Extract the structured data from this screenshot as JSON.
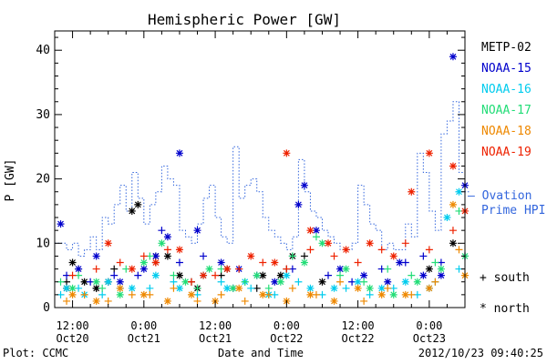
{
  "chart_data": {
    "type": "scatter",
    "title": "Hemispheric Power [GW]",
    "ylabel": "P [GW]",
    "xlabel": "Date and Time",
    "ylim": [
      0,
      43
    ],
    "xlim_hours": [
      -15,
      54
    ],
    "yticks": [
      "0",
      "10",
      "20",
      "30",
      "40"
    ],
    "xticks": [
      {
        "hour": -12,
        "time": "12:00",
        "date": "Oct20"
      },
      {
        "hour": 0,
        "time": "0:00",
        "date": "Oct21"
      },
      {
        "hour": 12,
        "time": "12:00",
        "date": "Oct21"
      },
      {
        "hour": 24,
        "time": "0:00",
        "date": "Oct22"
      },
      {
        "hour": 36,
        "time": "12:00",
        "date": "Oct22"
      },
      {
        "hour": 48,
        "time": "0:00",
        "date": "Oct23"
      }
    ],
    "marker_legend": {
      "south": "+ south",
      "north": "* north"
    },
    "series": [
      {
        "name": "METP-02",
        "color": "#000000",
        "south": [
          [
            -13,
            4
          ],
          [
            -11,
            6
          ],
          [
            -8,
            3
          ],
          [
            -5,
            6
          ],
          [
            2,
            7
          ],
          [
            8,
            4
          ],
          [
            13,
            5
          ],
          [
            19,
            3
          ],
          [
            24,
            6
          ],
          [
            27,
            8
          ]
        ],
        "north": [
          [
            -13,
            3
          ],
          [
            -12,
            7
          ],
          [
            -10,
            4
          ],
          [
            -8,
            3
          ],
          [
            -6,
            4
          ],
          [
            -2,
            15
          ],
          [
            -1,
            16
          ],
          [
            2,
            8
          ],
          [
            4,
            8
          ],
          [
            6,
            5
          ],
          [
            9,
            3
          ],
          [
            14,
            6
          ],
          [
            20,
            5
          ],
          [
            23,
            5
          ],
          [
            25,
            8
          ],
          [
            30,
            4
          ],
          [
            48,
            6
          ],
          [
            52,
            10
          ]
        ]
      },
      {
        "name": "NOAA-15",
        "color": "#0000cc",
        "south": [
          [
            -13,
            5
          ],
          [
            -9,
            4
          ],
          [
            -5,
            5
          ],
          [
            -1,
            5
          ],
          [
            3,
            12
          ],
          [
            6,
            7
          ],
          [
            10,
            8
          ],
          [
            15,
            3
          ],
          [
            19,
            5
          ],
          [
            25,
            6
          ],
          [
            31,
            5
          ],
          [
            35,
            4
          ],
          [
            40,
            6
          ],
          [
            44,
            7
          ],
          [
            47,
            8
          ],
          [
            50,
            7
          ],
          [
            54,
            8
          ]
        ],
        "north": [
          [
            -14,
            13
          ],
          [
            -11,
            6
          ],
          [
            -8,
            8
          ],
          [
            -4,
            4
          ],
          [
            0,
            6
          ],
          [
            2,
            8
          ],
          [
            4,
            11
          ],
          [
            6,
            24
          ],
          [
            9,
            12
          ],
          [
            13,
            7
          ],
          [
            16,
            6
          ],
          [
            22,
            4
          ],
          [
            26,
            16
          ],
          [
            27,
            19
          ],
          [
            29,
            12
          ],
          [
            33,
            6
          ],
          [
            37,
            5
          ],
          [
            41,
            4
          ],
          [
            43,
            7
          ],
          [
            47,
            5
          ],
          [
            50,
            5
          ],
          [
            52,
            39
          ],
          [
            54,
            19
          ]
        ]
      },
      {
        "name": "NOAA-16",
        "color": "#00ccee",
        "south": [
          [
            -14,
            2
          ],
          [
            -11,
            3
          ],
          [
            -7,
            2
          ],
          [
            -4,
            3
          ],
          [
            1,
            3
          ],
          [
            5,
            4
          ],
          [
            9,
            2
          ],
          [
            13,
            4
          ],
          [
            18,
            3
          ],
          [
            22,
            2
          ],
          [
            26,
            4
          ],
          [
            30,
            2
          ],
          [
            34,
            3
          ],
          [
            38,
            2
          ],
          [
            42,
            3
          ],
          [
            46,
            2
          ],
          [
            49,
            4
          ],
          [
            53,
            6
          ]
        ],
        "north": [
          [
            -13,
            3
          ],
          [
            -10,
            2
          ],
          [
            -6,
            4
          ],
          [
            -2,
            3
          ],
          [
            2,
            5
          ],
          [
            6,
            3
          ],
          [
            10,
            5
          ],
          [
            14,
            3
          ],
          [
            17,
            4
          ],
          [
            21,
            2
          ],
          [
            24,
            5
          ],
          [
            28,
            3
          ],
          [
            32,
            3
          ],
          [
            36,
            4
          ],
          [
            40,
            3
          ],
          [
            44,
            4
          ],
          [
            48,
            3
          ],
          [
            51,
            14
          ],
          [
            53,
            18
          ]
        ]
      },
      {
        "name": "NOAA-17",
        "color": "#22dd77",
        "south": [
          [
            -14,
            4
          ],
          [
            -11,
            5
          ],
          [
            -7,
            3
          ],
          [
            -3,
            6
          ],
          [
            1,
            8
          ],
          [
            5,
            5
          ],
          [
            9,
            3
          ],
          [
            13,
            6
          ],
          [
            17,
            4
          ],
          [
            21,
            3
          ],
          [
            25,
            8
          ],
          [
            29,
            11
          ],
          [
            33,
            5
          ],
          [
            37,
            4
          ],
          [
            41,
            6
          ],
          [
            45,
            5
          ],
          [
            49,
            7
          ],
          [
            53,
            15
          ]
        ],
        "north": [
          [
            -12,
            3
          ],
          [
            -8,
            4
          ],
          [
            -4,
            2
          ],
          [
            0,
            7
          ],
          [
            3,
            10
          ],
          [
            7,
            4
          ],
          [
            11,
            6
          ],
          [
            15,
            3
          ],
          [
            19,
            5
          ],
          [
            23,
            4
          ],
          [
            27,
            7
          ],
          [
            30,
            10
          ],
          [
            34,
            6
          ],
          [
            38,
            3
          ],
          [
            42,
            2
          ],
          [
            46,
            4
          ],
          [
            50,
            6
          ],
          [
            54,
            8
          ]
        ]
      },
      {
        "name": "NOAA-18",
        "color": "#ee8800",
        "south": [
          [
            -13,
            1
          ],
          [
            -10,
            2
          ],
          [
            -6,
            1
          ],
          [
            -2,
            2
          ],
          [
            1,
            2
          ],
          [
            5,
            3
          ],
          [
            9,
            1
          ],
          [
            13,
            2
          ],
          [
            17,
            1
          ],
          [
            21,
            2
          ],
          [
            25,
            3
          ],
          [
            29,
            2
          ],
          [
            33,
            4
          ],
          [
            37,
            1
          ],
          [
            41,
            3
          ],
          [
            45,
            2
          ],
          [
            49,
            4
          ],
          [
            53,
            9
          ]
        ],
        "north": [
          [
            -12,
            2
          ],
          [
            -8,
            1
          ],
          [
            -4,
            3
          ],
          [
            0,
            2
          ],
          [
            4,
            1
          ],
          [
            8,
            2
          ],
          [
            12,
            1
          ],
          [
            16,
            3
          ],
          [
            20,
            2
          ],
          [
            24,
            1
          ],
          [
            28,
            2
          ],
          [
            32,
            1
          ],
          [
            36,
            3
          ],
          [
            40,
            2
          ],
          [
            44,
            2
          ],
          [
            48,
            3
          ],
          [
            52,
            16
          ],
          [
            54,
            5
          ]
        ]
      },
      {
        "name": "NOAA-19",
        "color": "#ee2200",
        "south": [
          [
            -12,
            5
          ],
          [
            -8,
            6
          ],
          [
            -4,
            7
          ],
          [
            0,
            8
          ],
          [
            4,
            9
          ],
          [
            8,
            4
          ],
          [
            12,
            5
          ],
          [
            16,
            6
          ],
          [
            20,
            7
          ],
          [
            24,
            6
          ],
          [
            28,
            9
          ],
          [
            32,
            8
          ],
          [
            36,
            7
          ],
          [
            40,
            9
          ],
          [
            44,
            10
          ],
          [
            48,
            9
          ],
          [
            52,
            12
          ]
        ],
        "north": [
          [
            -6,
            10
          ],
          [
            -2,
            6
          ],
          [
            2,
            7
          ],
          [
            6,
            9
          ],
          [
            10,
            5
          ],
          [
            14,
            6
          ],
          [
            18,
            8
          ],
          [
            22,
            7
          ],
          [
            24,
            24
          ],
          [
            28,
            12
          ],
          [
            31,
            10
          ],
          [
            34,
            9
          ],
          [
            38,
            10
          ],
          [
            42,
            8
          ],
          [
            45,
            18
          ],
          [
            48,
            24
          ],
          [
            52,
            22
          ],
          [
            54,
            15
          ]
        ]
      }
    ],
    "ovation": {
      "name": "– Ovation Prime HPI",
      "color": "#3366dd",
      "steps": [
        [
          -15,
          10
        ],
        [
          -13,
          9
        ],
        [
          -12,
          10
        ],
        [
          -11,
          8
        ],
        [
          -10,
          9
        ],
        [
          -9,
          11
        ],
        [
          -8,
          9
        ],
        [
          -7,
          14
        ],
        [
          -6,
          13
        ],
        [
          -5,
          16
        ],
        [
          -4,
          19
        ],
        [
          -3,
          15
        ],
        [
          -2,
          21
        ],
        [
          -1,
          17
        ],
        [
          0,
          13
        ],
        [
          1,
          16
        ],
        [
          2,
          18
        ],
        [
          3,
          22
        ],
        [
          4,
          20
        ],
        [
          5,
          19
        ],
        [
          6,
          12
        ],
        [
          7,
          11
        ],
        [
          8,
          10
        ],
        [
          9,
          13
        ],
        [
          10,
          17
        ],
        [
          11,
          19
        ],
        [
          12,
          14
        ],
        [
          13,
          11
        ],
        [
          14,
          10
        ],
        [
          15,
          25
        ],
        [
          16,
          17
        ],
        [
          17,
          19
        ],
        [
          18,
          20
        ],
        [
          19,
          18
        ],
        [
          20,
          14
        ],
        [
          21,
          12
        ],
        [
          22,
          11
        ],
        [
          23,
          10
        ],
        [
          24,
          9
        ],
        [
          25,
          11
        ],
        [
          26,
          23
        ],
        [
          27,
          18
        ],
        [
          28,
          15
        ],
        [
          29,
          14
        ],
        [
          30,
          12
        ],
        [
          31,
          11
        ],
        [
          32,
          10
        ],
        [
          33,
          9
        ],
        [
          34,
          9
        ],
        [
          35,
          10
        ],
        [
          36,
          19
        ],
        [
          37,
          16
        ],
        [
          38,
          13
        ],
        [
          39,
          12
        ],
        [
          40,
          9
        ],
        [
          41,
          10
        ],
        [
          42,
          9
        ],
        [
          43,
          9
        ],
        [
          44,
          13
        ],
        [
          45,
          11
        ],
        [
          46,
          24
        ],
        [
          47,
          21
        ],
        [
          48,
          15
        ],
        [
          49,
          12
        ],
        [
          50,
          27
        ],
        [
          51,
          29
        ],
        [
          52,
          32
        ],
        [
          53,
          21
        ],
        [
          54,
          18
        ]
      ]
    }
  },
  "footer": {
    "plot_label": "Plot: CCMC",
    "timestamp": "2012/10/23 09:40:25"
  }
}
